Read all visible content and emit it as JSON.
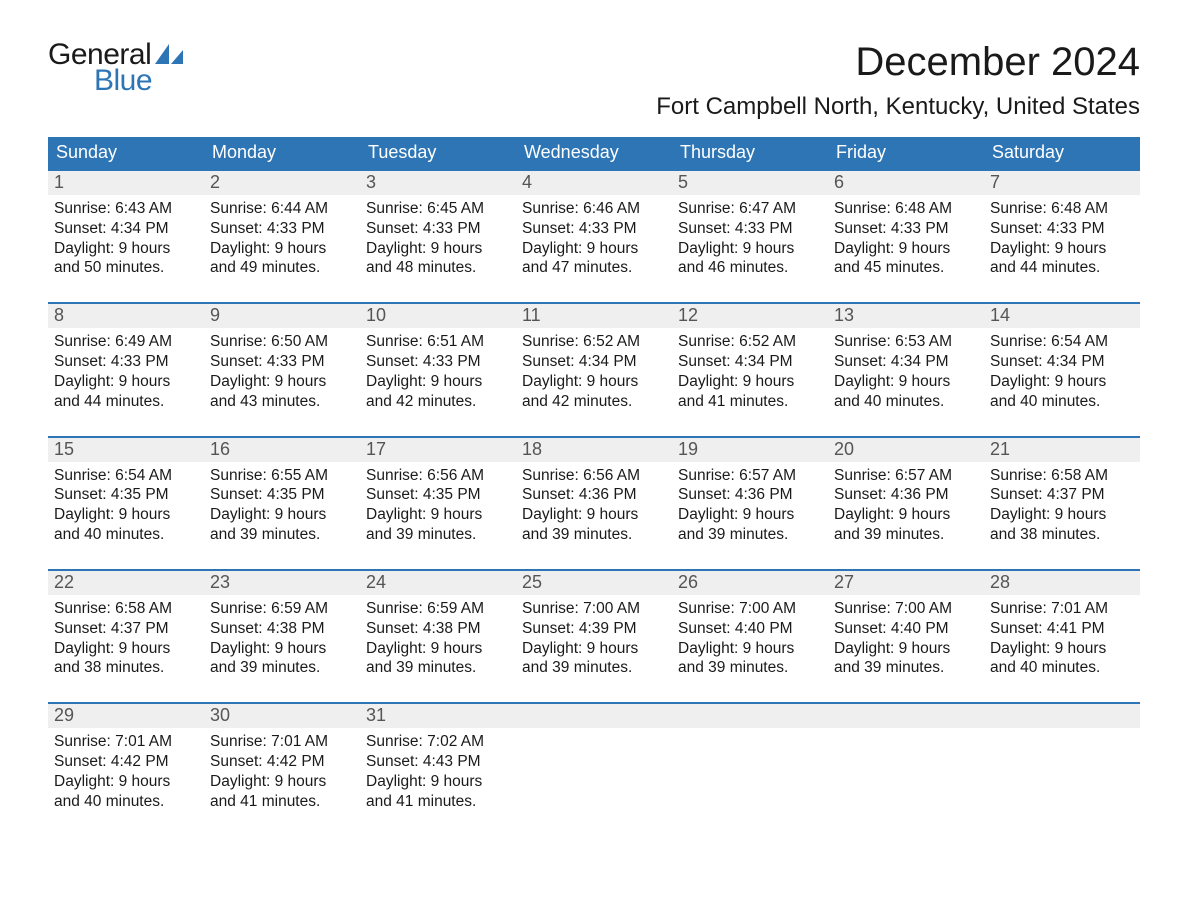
{
  "logo": {
    "top": "General",
    "bottom": "Blue"
  },
  "title": "December 2024",
  "location": "Fort Campbell North, Kentucky, United States",
  "colors": {
    "brand_blue": "#2e75b6",
    "header_blue": "#2e75b6",
    "day_bg": "#efefef",
    "text": "#1a1a1a",
    "background": "#ffffff"
  },
  "days_of_week": [
    "Sunday",
    "Monday",
    "Tuesday",
    "Wednesday",
    "Thursday",
    "Friday",
    "Saturday"
  ],
  "weeks": [
    [
      {
        "n": "1",
        "sr": "Sunrise: 6:43 AM",
        "ss": "Sunset: 4:34 PM",
        "d1": "Daylight: 9 hours",
        "d2": "and 50 minutes."
      },
      {
        "n": "2",
        "sr": "Sunrise: 6:44 AM",
        "ss": "Sunset: 4:33 PM",
        "d1": "Daylight: 9 hours",
        "d2": "and 49 minutes."
      },
      {
        "n": "3",
        "sr": "Sunrise: 6:45 AM",
        "ss": "Sunset: 4:33 PM",
        "d1": "Daylight: 9 hours",
        "d2": "and 48 minutes."
      },
      {
        "n": "4",
        "sr": "Sunrise: 6:46 AM",
        "ss": "Sunset: 4:33 PM",
        "d1": "Daylight: 9 hours",
        "d2": "and 47 minutes."
      },
      {
        "n": "5",
        "sr": "Sunrise: 6:47 AM",
        "ss": "Sunset: 4:33 PM",
        "d1": "Daylight: 9 hours",
        "d2": "and 46 minutes."
      },
      {
        "n": "6",
        "sr": "Sunrise: 6:48 AM",
        "ss": "Sunset: 4:33 PM",
        "d1": "Daylight: 9 hours",
        "d2": "and 45 minutes."
      },
      {
        "n": "7",
        "sr": "Sunrise: 6:48 AM",
        "ss": "Sunset: 4:33 PM",
        "d1": "Daylight: 9 hours",
        "d2": "and 44 minutes."
      }
    ],
    [
      {
        "n": "8",
        "sr": "Sunrise: 6:49 AM",
        "ss": "Sunset: 4:33 PM",
        "d1": "Daylight: 9 hours",
        "d2": "and 44 minutes."
      },
      {
        "n": "9",
        "sr": "Sunrise: 6:50 AM",
        "ss": "Sunset: 4:33 PM",
        "d1": "Daylight: 9 hours",
        "d2": "and 43 minutes."
      },
      {
        "n": "10",
        "sr": "Sunrise: 6:51 AM",
        "ss": "Sunset: 4:33 PM",
        "d1": "Daylight: 9 hours",
        "d2": "and 42 minutes."
      },
      {
        "n": "11",
        "sr": "Sunrise: 6:52 AM",
        "ss": "Sunset: 4:34 PM",
        "d1": "Daylight: 9 hours",
        "d2": "and 42 minutes."
      },
      {
        "n": "12",
        "sr": "Sunrise: 6:52 AM",
        "ss": "Sunset: 4:34 PM",
        "d1": "Daylight: 9 hours",
        "d2": "and 41 minutes."
      },
      {
        "n": "13",
        "sr": "Sunrise: 6:53 AM",
        "ss": "Sunset: 4:34 PM",
        "d1": "Daylight: 9 hours",
        "d2": "and 40 minutes."
      },
      {
        "n": "14",
        "sr": "Sunrise: 6:54 AM",
        "ss": "Sunset: 4:34 PM",
        "d1": "Daylight: 9 hours",
        "d2": "and 40 minutes."
      }
    ],
    [
      {
        "n": "15",
        "sr": "Sunrise: 6:54 AM",
        "ss": "Sunset: 4:35 PM",
        "d1": "Daylight: 9 hours",
        "d2": "and 40 minutes."
      },
      {
        "n": "16",
        "sr": "Sunrise: 6:55 AM",
        "ss": "Sunset: 4:35 PM",
        "d1": "Daylight: 9 hours",
        "d2": "and 39 minutes."
      },
      {
        "n": "17",
        "sr": "Sunrise: 6:56 AM",
        "ss": "Sunset: 4:35 PM",
        "d1": "Daylight: 9 hours",
        "d2": "and 39 minutes."
      },
      {
        "n": "18",
        "sr": "Sunrise: 6:56 AM",
        "ss": "Sunset: 4:36 PM",
        "d1": "Daylight: 9 hours",
        "d2": "and 39 minutes."
      },
      {
        "n": "19",
        "sr": "Sunrise: 6:57 AM",
        "ss": "Sunset: 4:36 PM",
        "d1": "Daylight: 9 hours",
        "d2": "and 39 minutes."
      },
      {
        "n": "20",
        "sr": "Sunrise: 6:57 AM",
        "ss": "Sunset: 4:36 PM",
        "d1": "Daylight: 9 hours",
        "d2": "and 39 minutes."
      },
      {
        "n": "21",
        "sr": "Sunrise: 6:58 AM",
        "ss": "Sunset: 4:37 PM",
        "d1": "Daylight: 9 hours",
        "d2": "and 38 minutes."
      }
    ],
    [
      {
        "n": "22",
        "sr": "Sunrise: 6:58 AM",
        "ss": "Sunset: 4:37 PM",
        "d1": "Daylight: 9 hours",
        "d2": "and 38 minutes."
      },
      {
        "n": "23",
        "sr": "Sunrise: 6:59 AM",
        "ss": "Sunset: 4:38 PM",
        "d1": "Daylight: 9 hours",
        "d2": "and 39 minutes."
      },
      {
        "n": "24",
        "sr": "Sunrise: 6:59 AM",
        "ss": "Sunset: 4:38 PM",
        "d1": "Daylight: 9 hours",
        "d2": "and 39 minutes."
      },
      {
        "n": "25",
        "sr": "Sunrise: 7:00 AM",
        "ss": "Sunset: 4:39 PM",
        "d1": "Daylight: 9 hours",
        "d2": "and 39 minutes."
      },
      {
        "n": "26",
        "sr": "Sunrise: 7:00 AM",
        "ss": "Sunset: 4:40 PM",
        "d1": "Daylight: 9 hours",
        "d2": "and 39 minutes."
      },
      {
        "n": "27",
        "sr": "Sunrise: 7:00 AM",
        "ss": "Sunset: 4:40 PM",
        "d1": "Daylight: 9 hours",
        "d2": "and 39 minutes."
      },
      {
        "n": "28",
        "sr": "Sunrise: 7:01 AM",
        "ss": "Sunset: 4:41 PM",
        "d1": "Daylight: 9 hours",
        "d2": "and 40 minutes."
      }
    ],
    [
      {
        "n": "29",
        "sr": "Sunrise: 7:01 AM",
        "ss": "Sunset: 4:42 PM",
        "d1": "Daylight: 9 hours",
        "d2": "and 40 minutes."
      },
      {
        "n": "30",
        "sr": "Sunrise: 7:01 AM",
        "ss": "Sunset: 4:42 PM",
        "d1": "Daylight: 9 hours",
        "d2": "and 41 minutes."
      },
      {
        "n": "31",
        "sr": "Sunrise: 7:02 AM",
        "ss": "Sunset: 4:43 PM",
        "d1": "Daylight: 9 hours",
        "d2": "and 41 minutes."
      },
      {
        "empty": true
      },
      {
        "empty": true
      },
      {
        "empty": true
      },
      {
        "empty": true
      }
    ]
  ]
}
